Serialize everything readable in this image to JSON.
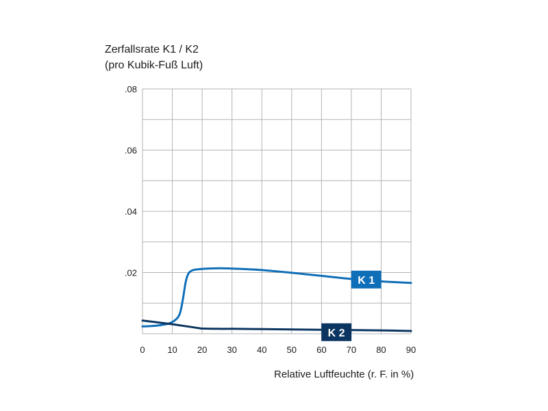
{
  "chart_data": {
    "type": "line",
    "ylabel_line1": "Zerfallsrate K1 / K2",
    "ylabel_line2": "(pro Kubik-Fuß Luft)",
    "xlabel": "Relative Luftfeuchte (r. F. in %)",
    "xlim": [
      0,
      90
    ],
    "ylim": [
      0,
      0.08
    ],
    "x_ticks": [
      {
        "value": 0,
        "label": "0"
      },
      {
        "value": 10,
        "label": "10"
      },
      {
        "value": 20,
        "label": "20"
      },
      {
        "value": 30,
        "label": "30"
      },
      {
        "value": 40,
        "label": "40"
      },
      {
        "value": 50,
        "label": "50"
      },
      {
        "value": 60,
        "label": "60"
      },
      {
        "value": 70,
        "label": "70"
      },
      {
        "value": 80,
        "label": "80"
      },
      {
        "value": 90,
        "label": "90"
      }
    ],
    "y_ticks": [
      {
        "value": 0.02,
        "label": ".02"
      },
      {
        "value": 0.04,
        "label": ".04"
      },
      {
        "value": 0.06,
        "label": ".06"
      },
      {
        "value": 0.08,
        "label": ".08"
      }
    ],
    "grid_x": [
      10,
      20,
      30,
      40,
      50,
      60,
      70,
      80,
      90
    ],
    "grid_y": [
      0.01,
      0.02,
      0.03,
      0.04,
      0.05,
      0.06,
      0.07,
      0.08
    ],
    "grid": true,
    "series": [
      {
        "name": "K 1",
        "color": "#0e6eb8",
        "x": [
          0,
          3,
          6,
          9,
          11,
          12.5,
          13.5,
          14.5,
          15.5,
          17,
          19,
          22,
          26,
          30,
          35,
          40,
          50,
          60,
          70,
          80,
          90
        ],
        "y": [
          0.0024,
          0.0025,
          0.0028,
          0.0034,
          0.0045,
          0.0065,
          0.011,
          0.017,
          0.0198,
          0.0208,
          0.0211,
          0.0213,
          0.0214,
          0.0213,
          0.0211,
          0.0208,
          0.0199,
          0.0189,
          0.0179,
          0.0171,
          0.0166
        ]
      },
      {
        "name": "K 2",
        "color": "#0b3560",
        "x": [
          0,
          5,
          10,
          15,
          19,
          20,
          25,
          30,
          40,
          50,
          60,
          70,
          80,
          90
        ],
        "y": [
          0.0043,
          0.0037,
          0.0031,
          0.0024,
          0.0018,
          0.0017,
          0.0016,
          0.0016,
          0.0015,
          0.0014,
          0.0013,
          0.0012,
          0.0011,
          0.0009
        ]
      }
    ],
    "series_labels": [
      {
        "name": "K 1",
        "x": 75,
        "y": 0.0177
      },
      {
        "name": "K 2",
        "x": 65,
        "y": 0.0005
      }
    ]
  }
}
